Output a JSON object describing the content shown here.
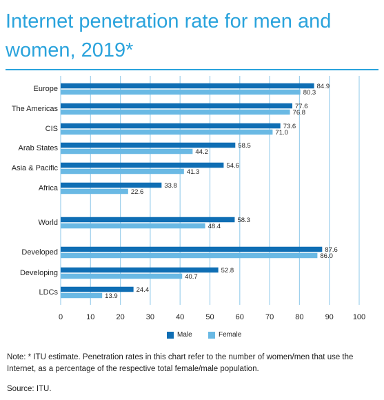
{
  "title": "Internet penetration rate for men and women, 2019*",
  "note": "Note: * ITU estimate. Penetration rates in this chart refer to the number of women/men that use the Internet, as a percentage of the respective total female/male population.",
  "source": "Source: ITU.",
  "colors": {
    "male": "#0f6eb4",
    "female": "#6ab9e4",
    "accent": "#2aa3dc",
    "grid": "#9fd0ec"
  },
  "chart_data": {
    "type": "bar",
    "orientation": "horizontal",
    "categories": [
      "Europe",
      "The Americas",
      "CIS",
      "Arab States",
      "Asia & Pacific",
      "Africa",
      "World",
      "Developed",
      "Developing",
      "LDCs"
    ],
    "series": [
      {
        "name": "Male",
        "values": [
          84.9,
          77.6,
          73.6,
          58.5,
          54.6,
          33.8,
          58.3,
          87.6,
          52.8,
          24.4
        ]
      },
      {
        "name": "Female",
        "values": [
          80.3,
          76.8,
          71.0,
          44.2,
          41.3,
          22.6,
          48.4,
          86.0,
          40.7,
          13.9
        ]
      }
    ],
    "xlim": [
      0,
      100
    ],
    "xticks": [
      0,
      10,
      20,
      30,
      40,
      50,
      60,
      70,
      80,
      90,
      100
    ],
    "grid": true,
    "legend": "bottom-center"
  }
}
